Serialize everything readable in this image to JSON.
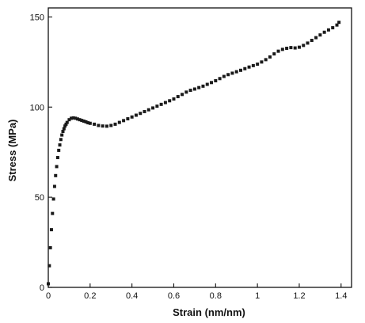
{
  "chart_data": {
    "type": "scatter",
    "title": "",
    "xlabel": "Strain (nm/nm)",
    "ylabel": "Stress (MPa)",
    "xlim": [
      0,
      1.45
    ],
    "ylim": [
      0,
      155
    ],
    "xticks": [
      0,
      0.2,
      0.4,
      0.6,
      0.8,
      1,
      1.2,
      1.4
    ],
    "xtick_labels": [
      "0",
      "0.2",
      "0.4",
      "0.6",
      "0.8",
      "1",
      "1.2",
      "1.4"
    ],
    "yticks": [
      0,
      50,
      100,
      150
    ],
    "ytick_labels": [
      "0",
      "50",
      "100",
      "150"
    ],
    "grid": false,
    "legend": "none",
    "marker_color": "#1a1a1a",
    "series": [
      {
        "x": [
          0,
          0.005,
          0.01,
          0.015,
          0.02,
          0.025,
          0.03,
          0.035,
          0.04,
          0.045,
          0.05,
          0.055,
          0.06,
          0.065,
          0.07,
          0.075,
          0.08,
          0.085,
          0.09,
          0.1,
          0.11,
          0.12,
          0.13,
          0.14,
          0.15,
          0.16,
          0.17,
          0.18,
          0.19,
          0.2,
          0.22,
          0.24,
          0.26,
          0.28,
          0.3,
          0.32,
          0.34,
          0.36,
          0.38,
          0.4,
          0.42,
          0.44,
          0.46,
          0.48,
          0.5,
          0.52,
          0.54,
          0.56,
          0.58,
          0.6,
          0.62,
          0.64,
          0.66,
          0.68,
          0.7,
          0.72,
          0.74,
          0.76,
          0.78,
          0.8,
          0.82,
          0.84,
          0.86,
          0.88,
          0.9,
          0.92,
          0.94,
          0.96,
          0.98,
          1.0,
          1.02,
          1.04,
          1.06,
          1.08,
          1.1,
          1.12,
          1.14,
          1.16,
          1.18,
          1.2,
          1.22,
          1.24,
          1.26,
          1.28,
          1.3,
          1.32,
          1.34,
          1.36,
          1.38,
          1.39
        ],
        "y": [
          2,
          12,
          22,
          32,
          41,
          49,
          56,
          62,
          67,
          72,
          76,
          79,
          82,
          84.5,
          86.5,
          88,
          89.5,
          90.5,
          91.5,
          93,
          93.8,
          94,
          93.8,
          93.4,
          93,
          92.6,
          92.2,
          91.8,
          91.3,
          91,
          90.5,
          89.8,
          89.5,
          89.4,
          89.8,
          90.5,
          91.5,
          92.5,
          93.5,
          94.5,
          95.5,
          96.5,
          97.5,
          98.5,
          99.5,
          100.5,
          101.5,
          102.5,
          103.5,
          104.5,
          105.8,
          107,
          108.3,
          109.3,
          110,
          110.8,
          111.6,
          112.6,
          113.6,
          114.6,
          115.8,
          117,
          118,
          118.8,
          119.6,
          120.4,
          121.3,
          122.2,
          123,
          123.8,
          125,
          126.3,
          127.8,
          129.5,
          131,
          132,
          132.6,
          133,
          132.8,
          133.2,
          134.2,
          135.5,
          137,
          138.5,
          140,
          141.5,
          142.8,
          144,
          145.5,
          147
        ]
      }
    ]
  }
}
